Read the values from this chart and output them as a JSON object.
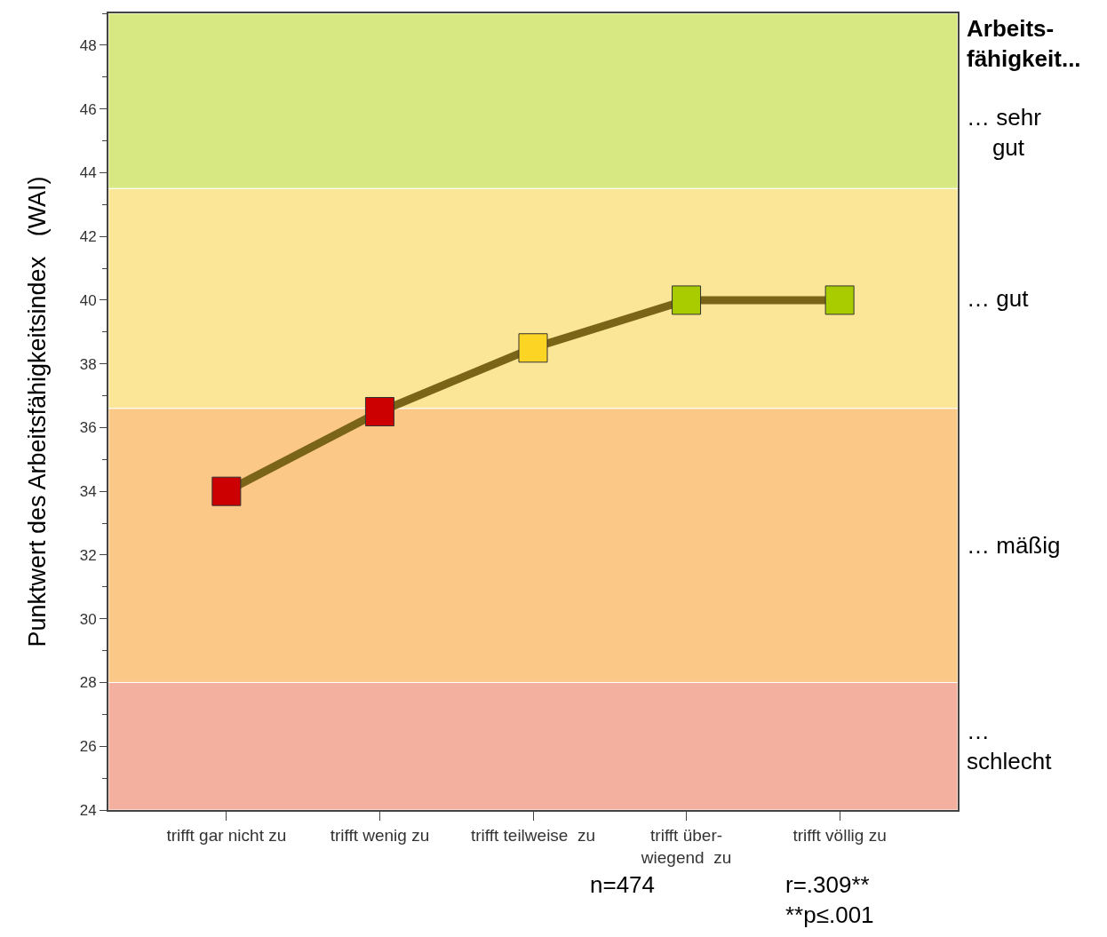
{
  "chart_data": {
    "type": "line",
    "ylabel": "Punktwert des Arbeitsfähigkeitsindex   (WAI)",
    "categories": [
      "trifft gar nicht zu",
      "trifft wenig zu",
      "trifft teilweise  zu",
      "trifft über-\nwiegend  zu",
      "trifft völlig zu"
    ],
    "series": [
      {
        "color": "#7a6418",
        "colors": [
          "#cc0000",
          "#cc0000",
          "#fcd423",
          "#a8cc00",
          "#a8cc00"
        ],
        "values": [
          34,
          36.5,
          38.5,
          40,
          40
        ]
      }
    ],
    "ylim": [
      24,
      49
    ],
    "yticks": [
      24,
      26,
      28,
      30,
      32,
      34,
      36,
      38,
      40,
      42,
      44,
      46,
      48
    ],
    "marker": "square",
    "line_style": "solid",
    "grid": false,
    "bands": [
      {
        "axis": "y",
        "from": 43.5,
        "to": 49,
        "label": "… sehr\n    gut",
        "color": "#d7e882"
      },
      {
        "axis": "y",
        "from": 36.6,
        "to": 43.5,
        "label": "… gut",
        "color": "#fbe596"
      },
      {
        "axis": "y",
        "from": 28,
        "to": 36.6,
        "label": "… mäßig",
        "color": "#fcc888"
      },
      {
        "axis": "y",
        "from": 24,
        "to": 28,
        "label": "…\nschlecht",
        "color": "#f4b09e"
      }
    ],
    "annotations": [
      "Arbeits-\nfähigkeit...",
      "n=474",
      "r=.309**\n**p≤.001"
    ]
  }
}
